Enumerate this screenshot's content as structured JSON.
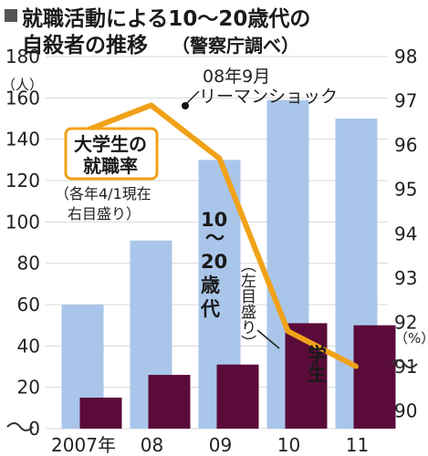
{
  "chart_data": {
    "type": "bar",
    "title_line1": "就職活動による10～20歳代の",
    "title_line2": "自殺者の推移",
    "title_source": "（警察庁調べ）",
    "categories": [
      "2007年",
      "08",
      "09",
      "10",
      "11"
    ],
    "left_axis": {
      "unit": "（人）",
      "ticks": [
        0,
        20,
        40,
        60,
        80,
        100,
        120,
        140,
        160,
        180
      ],
      "ylim": [
        0,
        180
      ]
    },
    "right_axis": {
      "unit": "（%）",
      "ticks": [
        90,
        91,
        92,
        93,
        94,
        95,
        96,
        97,
        98
      ],
      "ylim": [
        89.6,
        98
      ]
    },
    "series": [
      {
        "name": "10～20歳代",
        "axis": "left",
        "values": [
          60,
          91,
          130,
          159,
          150
        ],
        "color": "#a9c6ea"
      },
      {
        "name": "学生",
        "axis": "left",
        "values": [
          15,
          26,
          31,
          51,
          50
        ],
        "color": "#5b0b3a"
      },
      {
        "name": "大学生の就職率",
        "axis": "right",
        "type": "line",
        "values": [
          96.3,
          96.9,
          95.7,
          91.8,
          91.0
        ],
        "color": "#f0a218"
      }
    ],
    "annotations": {
      "shock_line1": "08年9月",
      "shock_line2": "リーマンショック",
      "rate_label_line1": "大学生の",
      "rate_label_line2": "就職率",
      "rate_note_line1": "（各年4/1現在",
      "rate_note_line2": "右目盛り）",
      "youth_label_line1": "10",
      "youth_label_line2": "～",
      "youth_label_line3": "20",
      "youth_label_line4": "歳",
      "youth_label_line5": "代",
      "left_note": "（左目盛り）",
      "student_label": "学生"
    }
  },
  "colors": {
    "line": "#f0a218",
    "youth_bar": "#a9c6ea",
    "student_bar": "#5b0b3a"
  }
}
